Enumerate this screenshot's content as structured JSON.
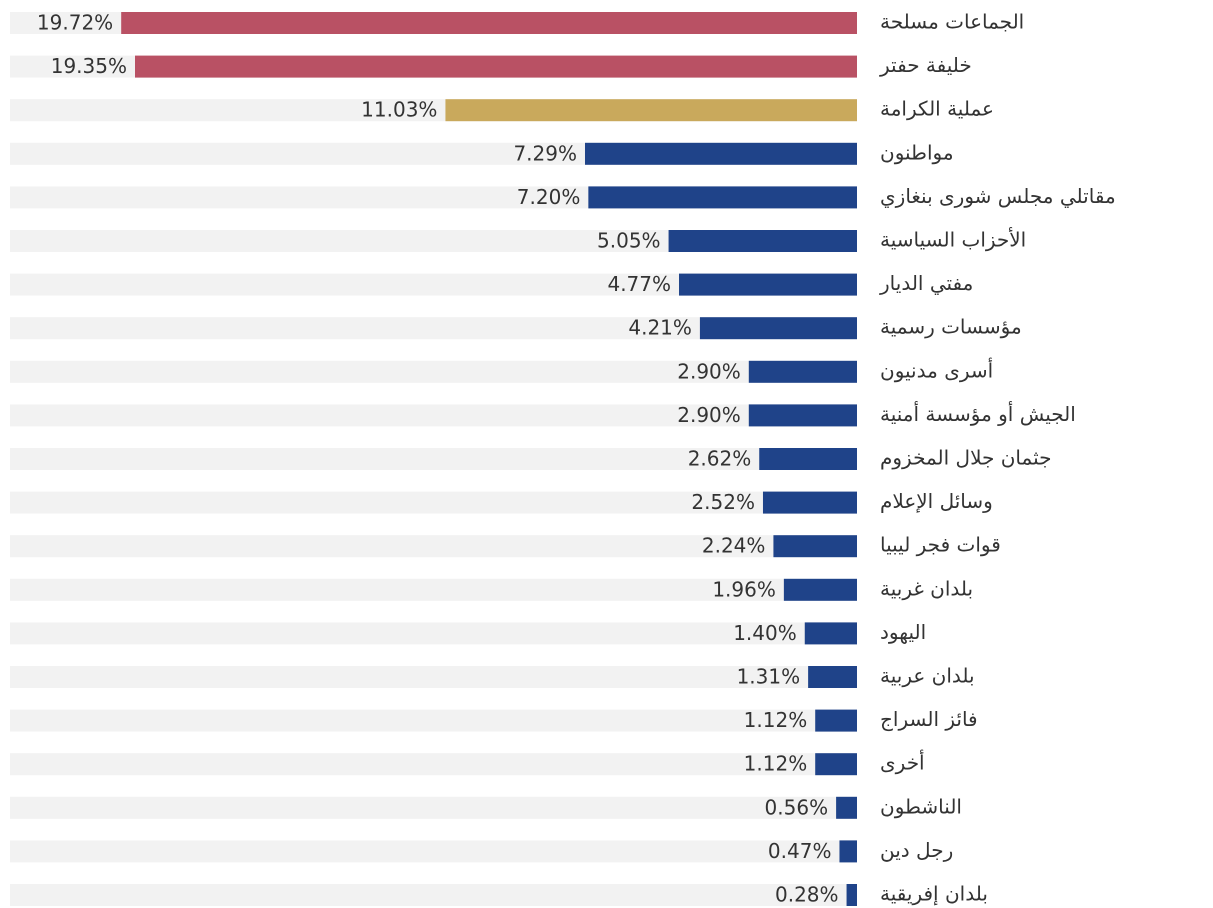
{
  "chart_data": {
    "type": "hbar",
    "categories": [
      "الجماعات مسلحة",
      "خليفة حفتر",
      "عملية الكرامة",
      "مواطنون",
      "مقاتلي مجلس شورى بنغازي",
      "الأحزاب السياسية",
      "مفتي الديار",
      "مؤسسات رسمية",
      "أسرى مدنيون",
      "الجيش أو مؤسسة أمنية",
      "جثمان جلال المخزوم",
      "وسائل الإعلام",
      "قوات فجر ليبيا",
      "بلدان غربية",
      "اليهود",
      "بلدان عربية",
      "فائز السراج",
      "أخرى",
      "الناشطون",
      "رجل دين",
      "بلدان إفريقية"
    ],
    "values": [
      19.72,
      19.35,
      11.03,
      7.29,
      7.2,
      5.05,
      4.77,
      4.21,
      2.9,
      2.9,
      2.62,
      2.52,
      2.24,
      1.96,
      1.4,
      1.31,
      1.12,
      1.12,
      0.56,
      0.47,
      0.28
    ],
    "value_labels": [
      "19.72%",
      "19.35%",
      "11.03%",
      "7.29%",
      "7.20%",
      "5.05%",
      "4.77%",
      "4.21%",
      "2.90%",
      "2.90%",
      "2.62%",
      "2.52%",
      "2.24%",
      "1.96%",
      "1.40%",
      "1.31%",
      "1.12%",
      "1.12%",
      "0.56%",
      "0.47%",
      "0.28%"
    ],
    "colors": [
      "#b95164",
      "#b95164",
      "#c9a95c",
      "#1f4389",
      "#1f4389",
      "#1f4389",
      "#1f4389",
      "#1f4389",
      "#1f4389",
      "#1f4389",
      "#1f4389",
      "#1f4389",
      "#1f4389",
      "#1f4389",
      "#1f4389",
      "#1f4389",
      "#1f4389",
      "#1f4389",
      "#1f4389",
      "#1f4389",
      "#1f4389"
    ],
    "xlim": [
      0,
      22.7
    ]
  }
}
